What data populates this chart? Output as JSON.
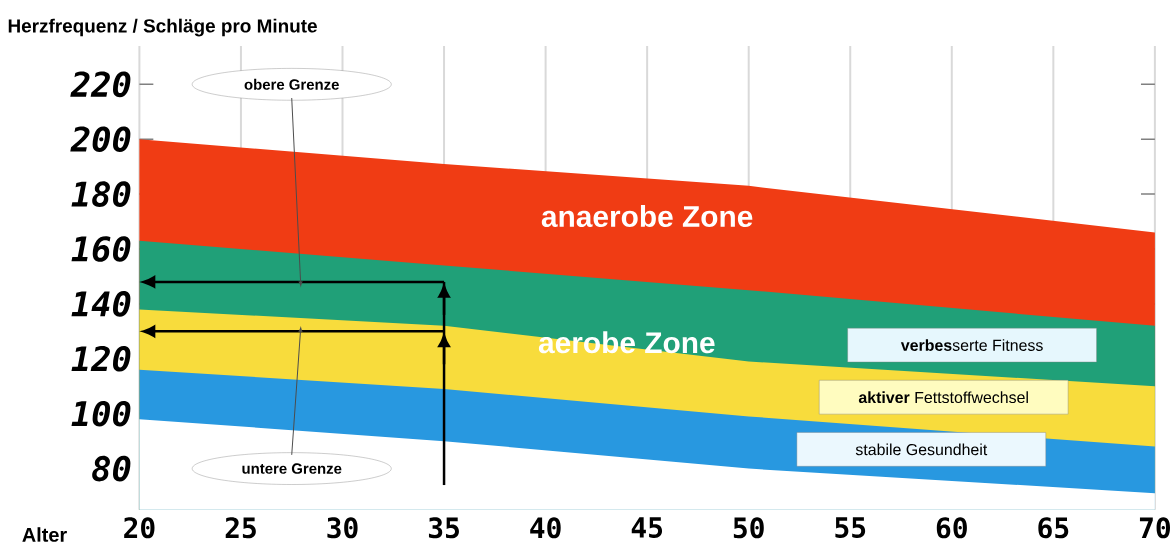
{
  "chart_data": {
    "type": "area",
    "ylabel": "Herzfrequenz / Schläge pro Minute",
    "xlabel": "Alter",
    "x": [
      20,
      35,
      50,
      70
    ],
    "series": [
      {
        "color": "#f03c14",
        "values": [
          200,
          191,
          183,
          166
        ]
      },
      {
        "color": "#20a078",
        "values": [
          163,
          154,
          145,
          132
        ]
      },
      {
        "color": "#f8dc3c",
        "values": [
          138,
          132,
          119,
          110
        ]
      },
      {
        "color": "#2898e0",
        "values": [
          116,
          109,
          99,
          88
        ]
      },
      {
        "color": "#ffffff",
        "values": [
          98,
          90,
          80,
          71
        ]
      }
    ],
    "xlim": [
      20,
      70
    ],
    "ylim": [
      65,
      234
    ],
    "xticks": [
      20,
      25,
      30,
      35,
      40,
      45,
      50,
      55,
      60,
      65,
      70
    ],
    "yticks": [
      80,
      100,
      120,
      140,
      160,
      180,
      200,
      220
    ],
    "grid": "x",
    "ref_lines": [
      {
        "axis": "y",
        "value": 148,
        "label": "obere Grenze"
      },
      {
        "axis": "y",
        "value": 130,
        "label": "untere Grenze"
      },
      {
        "axis": "x",
        "value": 35
      }
    ],
    "annotations": [
      "anaerobe Zone",
      "aerobe Zone",
      "**verbes**serte Fitness",
      "**aktiver** Fettstoffwechsel",
      "stabile Gesundheit"
    ]
  }
}
